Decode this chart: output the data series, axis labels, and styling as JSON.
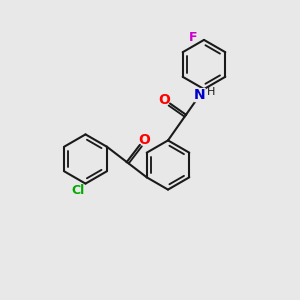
{
  "background_color": "#e8e8e8",
  "bond_color": "#1a1a1a",
  "atom_colors": {
    "O": "#ff0000",
    "N": "#0000cc",
    "Cl": "#00aa00",
    "F": "#cc00cc",
    "C": "#1a1a1a",
    "H": "#1a1a1a"
  },
  "figsize": [
    3.0,
    3.0
  ],
  "dpi": 100,
  "xlim": [
    0,
    10
  ],
  "ylim": [
    0,
    10
  ]
}
